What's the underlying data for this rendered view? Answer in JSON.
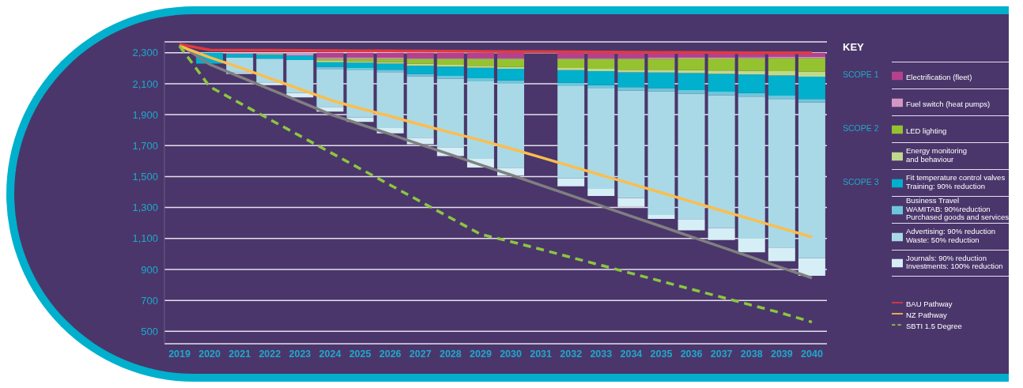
{
  "chart_data": {
    "type": "bar",
    "legend_title": "KEY",
    "legend": "right",
    "grid": "y",
    "marker": "none",
    "categories": [
      "2019",
      "2020",
      "2021",
      "2022",
      "2023",
      "2024",
      "2025",
      "2026",
      "2027",
      "2028",
      "2029",
      "2030",
      "2031",
      "2032",
      "2033",
      "2034",
      "2035",
      "2036",
      "2037",
      "2038",
      "2039",
      "2040"
    ],
    "ylim": [
      420,
      2370
    ],
    "yticks": [
      500,
      700,
      900,
      {
        "value": 1100,
        "label": "1,100"
      },
      {
        "value": 1300,
        "label": "1,300"
      },
      {
        "value": 1500,
        "label": "1,500"
      },
      {
        "value": 1700,
        "label": "1,700"
      },
      {
        "value": 1900,
        "label": "1,900"
      },
      {
        "value": 2100,
        "label": "2,100"
      },
      {
        "value": 2300,
        "label": "2,300"
      }
    ],
    "annotations": [
      "SCOPE 1",
      "SCOPE 2",
      "SCOPE 3"
    ],
    "series": [
      {
        "name": "Journals: 90% reduction\nInvestments: 100% reduction",
        "color": "#d6eef5",
        "base": [
          null,
          null,
          2163,
          2090,
          2011,
          1920,
          1853,
          1779,
          1709,
          1632,
          1558,
          1506,
          null,
          1437,
          1374,
          1304,
          1227,
          1153,
          1090,
          1011,
          953,
          859
        ],
        "values": [
          null,
          null,
          10,
          18,
          30,
          30,
          30,
          35,
          42,
          58,
          56,
          51,
          null,
          51,
          46,
          58,
          25,
          72,
          77,
          88,
          88,
          114
        ]
      },
      {
        "name": "Advertising: 90% reduction\nWaste: 50% reduction",
        "color": "#a9d9e6",
        "base": [
          null,
          null,
          2173,
          2108,
          2041,
          1950,
          1883,
          1814,
          1751,
          1690,
          1614,
          1557,
          null,
          1488,
          1420,
          1362,
          1252,
          1225,
          1167,
          1099,
          1041,
          973
        ],
        "values": [
          null,
          null,
          96,
          153,
          211,
          245,
          303,
          361,
          396,
          442,
          501,
          544,
          null,
          596,
          649,
          693,
          798,
          811,
          859,
          918,
          960,
          1007
        ]
      },
      {
        "name": "Business Travel\nWAMITAB: 90%reduction\nPurchased goods and services",
        "color": "#6ec6da",
        "base": [
          null,
          null,
          null,
          null,
          null,
          2195,
          2186,
          2175,
          2147,
          2132,
          2115,
          2101,
          null,
          2084,
          2069,
          2055,
          2050,
          2036,
          2026,
          2017,
          2001,
          1980
        ],
        "values": [
          null,
          null,
          null,
          null,
          null,
          14,
          15,
          15,
          16,
          18,
          20,
          20,
          null,
          22,
          22,
          23,
          22,
          22,
          22,
          22,
          22,
          21
        ]
      },
      {
        "name": "Fit temperature control valves\nTraining: 90% reduction",
        "color": "#00b0cc",
        "base": [
          null,
          2230,
          2269,
          2261,
          2252,
          2209,
          2201,
          2190,
          2163,
          2150,
          2135,
          2121,
          null,
          2106,
          2091,
          2078,
          2072,
          2058,
          2048,
          2039,
          2023,
          2001
        ],
        "values": [
          null,
          70,
          23,
          26,
          30,
          30,
          35,
          40,
          53,
          60,
          68,
          75,
          null,
          82,
          90,
          96,
          100,
          110,
          115,
          120,
          130,
          144
        ]
      },
      {
        "name": "Energy monitoring\nand behaviour",
        "color": "#c0d98a",
        "base": [
          null,
          null,
          null,
          2287,
          null,
          2239,
          2236,
          2230,
          2216,
          2210,
          2203,
          2196,
          null,
          2188,
          2181,
          2174,
          2172,
          2168,
          2163,
          2159,
          2153,
          2145
        ],
        "values": [
          null,
          null,
          null,
          5,
          null,
          8,
          8,
          10,
          14,
          12,
          12,
          12,
          null,
          14,
          15,
          16,
          18,
          20,
          22,
          25,
          28,
          32
        ]
      },
      {
        "name": "LED lighting",
        "color": "#95c22f",
        "base": [
          null,
          null,
          null,
          null,
          null,
          2247,
          2244,
          2240,
          2230,
          2222,
          2215,
          2208,
          null,
          2202,
          2196,
          2190,
          2190,
          2188,
          2185,
          2184,
          2181,
          2177
        ],
        "values": [
          null,
          null,
          null,
          null,
          null,
          13,
          18,
          22,
          30,
          38,
          45,
          52,
          null,
          58,
          64,
          70,
          72,
          75,
          78,
          80,
          84,
          88
        ]
      },
      {
        "name": "Fuel switch (heat pumps)",
        "color": "#d397c4",
        "base": [
          null,
          null,
          2292,
          2292,
          2282,
          2260,
          2262,
          2262,
          2260,
          2260,
          2260,
          2260,
          null,
          2260,
          2260,
          2260,
          2262,
          2263,
          2263,
          2264,
          2265,
          2265
        ],
        "values": [
          null,
          null,
          8,
          8,
          18,
          11,
          8,
          6,
          5,
          5,
          5,
          5,
          null,
          5,
          5,
          5,
          6,
          7,
          7,
          8,
          8,
          9
        ]
      },
      {
        "name": "Electrification (fleet)",
        "color": "#b5418e",
        "base": [
          null,
          null,
          null,
          null,
          null,
          2271,
          2270,
          2268,
          2265,
          2265,
          2265,
          2265,
          null,
          2265,
          2265,
          2265,
          2268,
          2270,
          2270,
          2272,
          2273,
          2274
        ],
        "values": [
          null,
          null,
          null,
          null,
          null,
          29,
          30,
          32,
          35,
          35,
          35,
          35,
          null,
          35,
          35,
          35,
          32,
          30,
          30,
          28,
          27,
          26
        ]
      },
      {
        "type": "line",
        "color": "#808080",
        "line_style": "solid",
        "values": [
          2355,
          2225,
          2145,
          2064,
          1984,
          1903,
          1838,
          1773,
          1707,
          1642,
          1576,
          1511,
          1444,
          1378,
          1311,
          1244,
          1178,
          1111,
          1045,
          978,
          911,
          845
        ]
      },
      {
        "type": "line",
        "name": "BAU Pathway",
        "color": "#e03a3e",
        "line_style": "solid",
        "values": [
          2355,
          2318,
          2317,
          2316,
          2315,
          2314,
          2313,
          2312,
          2311,
          2310,
          2309,
          2308,
          2307,
          2306,
          2305,
          2304,
          2303,
          2302,
          2301,
          2300,
          2300,
          2300
        ]
      },
      {
        "type": "line",
        "name": "NZ Pathway",
        "color": "#fbbd4e",
        "line_style": "solid",
        "values": [
          2344,
          2270,
          2205,
          2135,
          2065,
          1995,
          1940,
          1890,
          1835,
          1785,
          1735,
          1681,
          1624,
          1567,
          1510,
          1453,
          1396,
          1338,
          1280,
          1223,
          1166,
          1109
        ]
      },
      {
        "type": "line",
        "name": "SBTI 1.5 Degree",
        "color": "#8cc63f",
        "line_style": "dashed",
        "values": [
          2344,
          2081,
          1975,
          1869,
          1763,
          1657,
          1551,
          1445,
          1339,
          1233,
          1127,
          1080,
          1030,
          978,
          927,
          875,
          824,
          772,
          721,
          669,
          618,
          560
        ]
      }
    ]
  }
}
